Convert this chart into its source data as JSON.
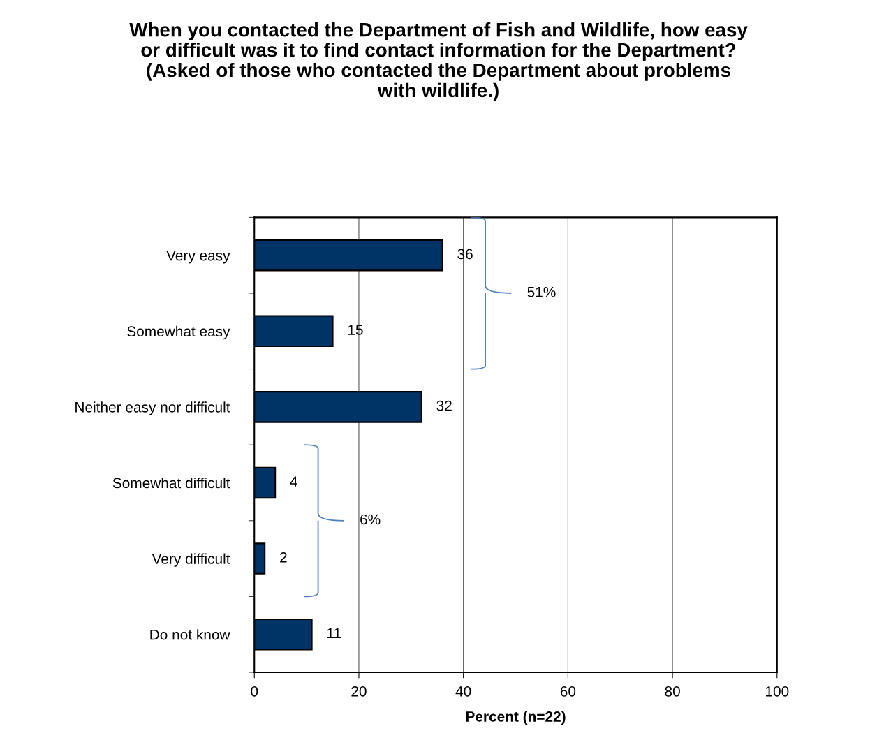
{
  "chart_data": {
    "type": "bar",
    "orientation": "horizontal",
    "title": "When you contacted the Department of Fish and Wildlife, how easy or difficult was it to find contact information for the Department? (Asked of those who contacted the Department about problems with wildlife.)",
    "xlabel": "Percent (n=22)",
    "categories": [
      "Very easy",
      "Somewhat easy",
      "Neither easy nor difficult",
      "Somewhat difficult",
      "Very difficult",
      "Do not know"
    ],
    "values": [
      36,
      15,
      32,
      4,
      2,
      11
    ],
    "color": "#003366",
    "data_labels": true,
    "xlim": [
      0,
      100
    ],
    "xticks": [
      0,
      20,
      40,
      60,
      80,
      100
    ],
    "grid": "x",
    "annotations": [
      "51%",
      "6%"
    ]
  }
}
